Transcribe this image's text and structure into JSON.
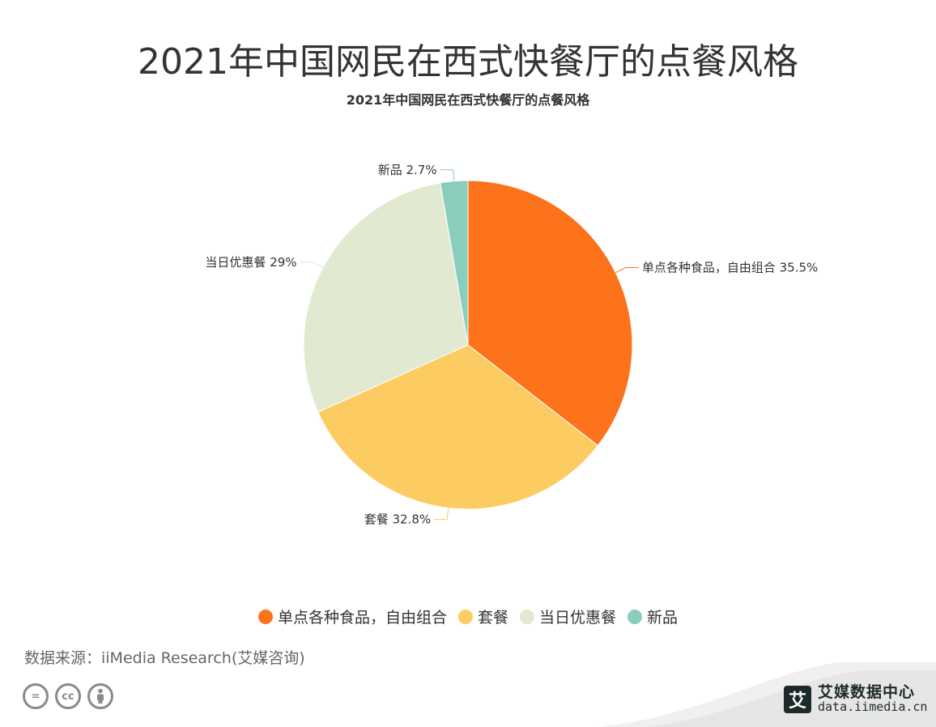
{
  "page": {
    "title": "2021年中国网民在西式快餐厅的点餐风格",
    "source": "数据来源：iiMedia Research(艾媒咨询)"
  },
  "brand": {
    "logo_char": "艾",
    "name": "艾媒数据中心",
    "url": "data.iimedia.cn"
  },
  "cc_icons": [
    "equals-icon",
    "cc-icon",
    "person-icon"
  ],
  "chart_data": {
    "type": "pie",
    "title": "2021年中国网民在西式快餐厅的点餐风格",
    "legend_position": "bottom",
    "slices": [
      {
        "name": "单点各种食品，自由组合",
        "value": 35.5,
        "label": "单点各种食品，自由组合 35.5%",
        "color": "#fc731c"
      },
      {
        "name": "套餐",
        "value": 32.8,
        "label": "套餐 32.8%",
        "color": "#fccc62"
      },
      {
        "name": "当日优惠餐",
        "value": 29,
        "label": "当日优惠餐 29%",
        "color": "#e1e9d1"
      },
      {
        "name": "新品",
        "value": 2.7,
        "label": "新品 2.7%",
        "color": "#8acdba"
      }
    ]
  }
}
